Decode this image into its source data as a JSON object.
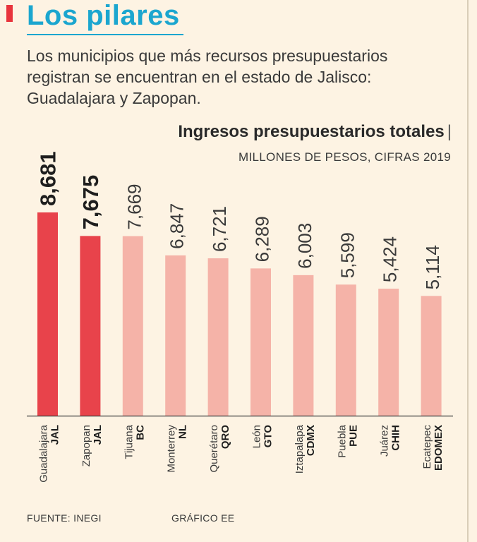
{
  "header": {
    "title": "Los pilares",
    "subtitle": "Los municipios que más recursos presupuestarios registran se encuentran en el estado de Jalisco: Guadalajara y Zapopan."
  },
  "colors": {
    "accent": "#e8343c",
    "title": "#1ba6cf",
    "bar_highlight": "#e8434b",
    "bar_normal": "#f5b3a8",
    "background": "#fdf3e3"
  },
  "chart_data": {
    "type": "bar",
    "title": "Ingresos presupuestarios totales",
    "title_separator": "|",
    "unit": "MILLONES DE PESOS, CIFRAS 2019",
    "categories": [
      "Guadalajara",
      "Zapopan",
      "Tijuana",
      "Monterrey",
      "Querétaro",
      "León",
      "Iztapalapa",
      "Puebla",
      "Juárez",
      "Ecatepec"
    ],
    "states": [
      "JAL",
      "JAL",
      "BC",
      "NL",
      "QRO",
      "GTO",
      "CDMX",
      "PUE",
      "CHIH",
      "EDOMEX"
    ],
    "values": [
      8681,
      7675,
      7669,
      6847,
      6721,
      6289,
      6003,
      5599,
      5424,
      5114
    ],
    "value_labels": [
      "8,681",
      "7,675",
      "7,669",
      "6,847",
      "6,721",
      "6,289",
      "6,003",
      "5,599",
      "5,424",
      "5,114"
    ],
    "highlight": [
      true,
      true,
      false,
      false,
      false,
      false,
      false,
      false,
      false,
      false
    ],
    "ylim": [
      0,
      8681
    ]
  },
  "footer": {
    "source": "FUENTE: INEGI",
    "credit": "GRÁFICO EE"
  }
}
